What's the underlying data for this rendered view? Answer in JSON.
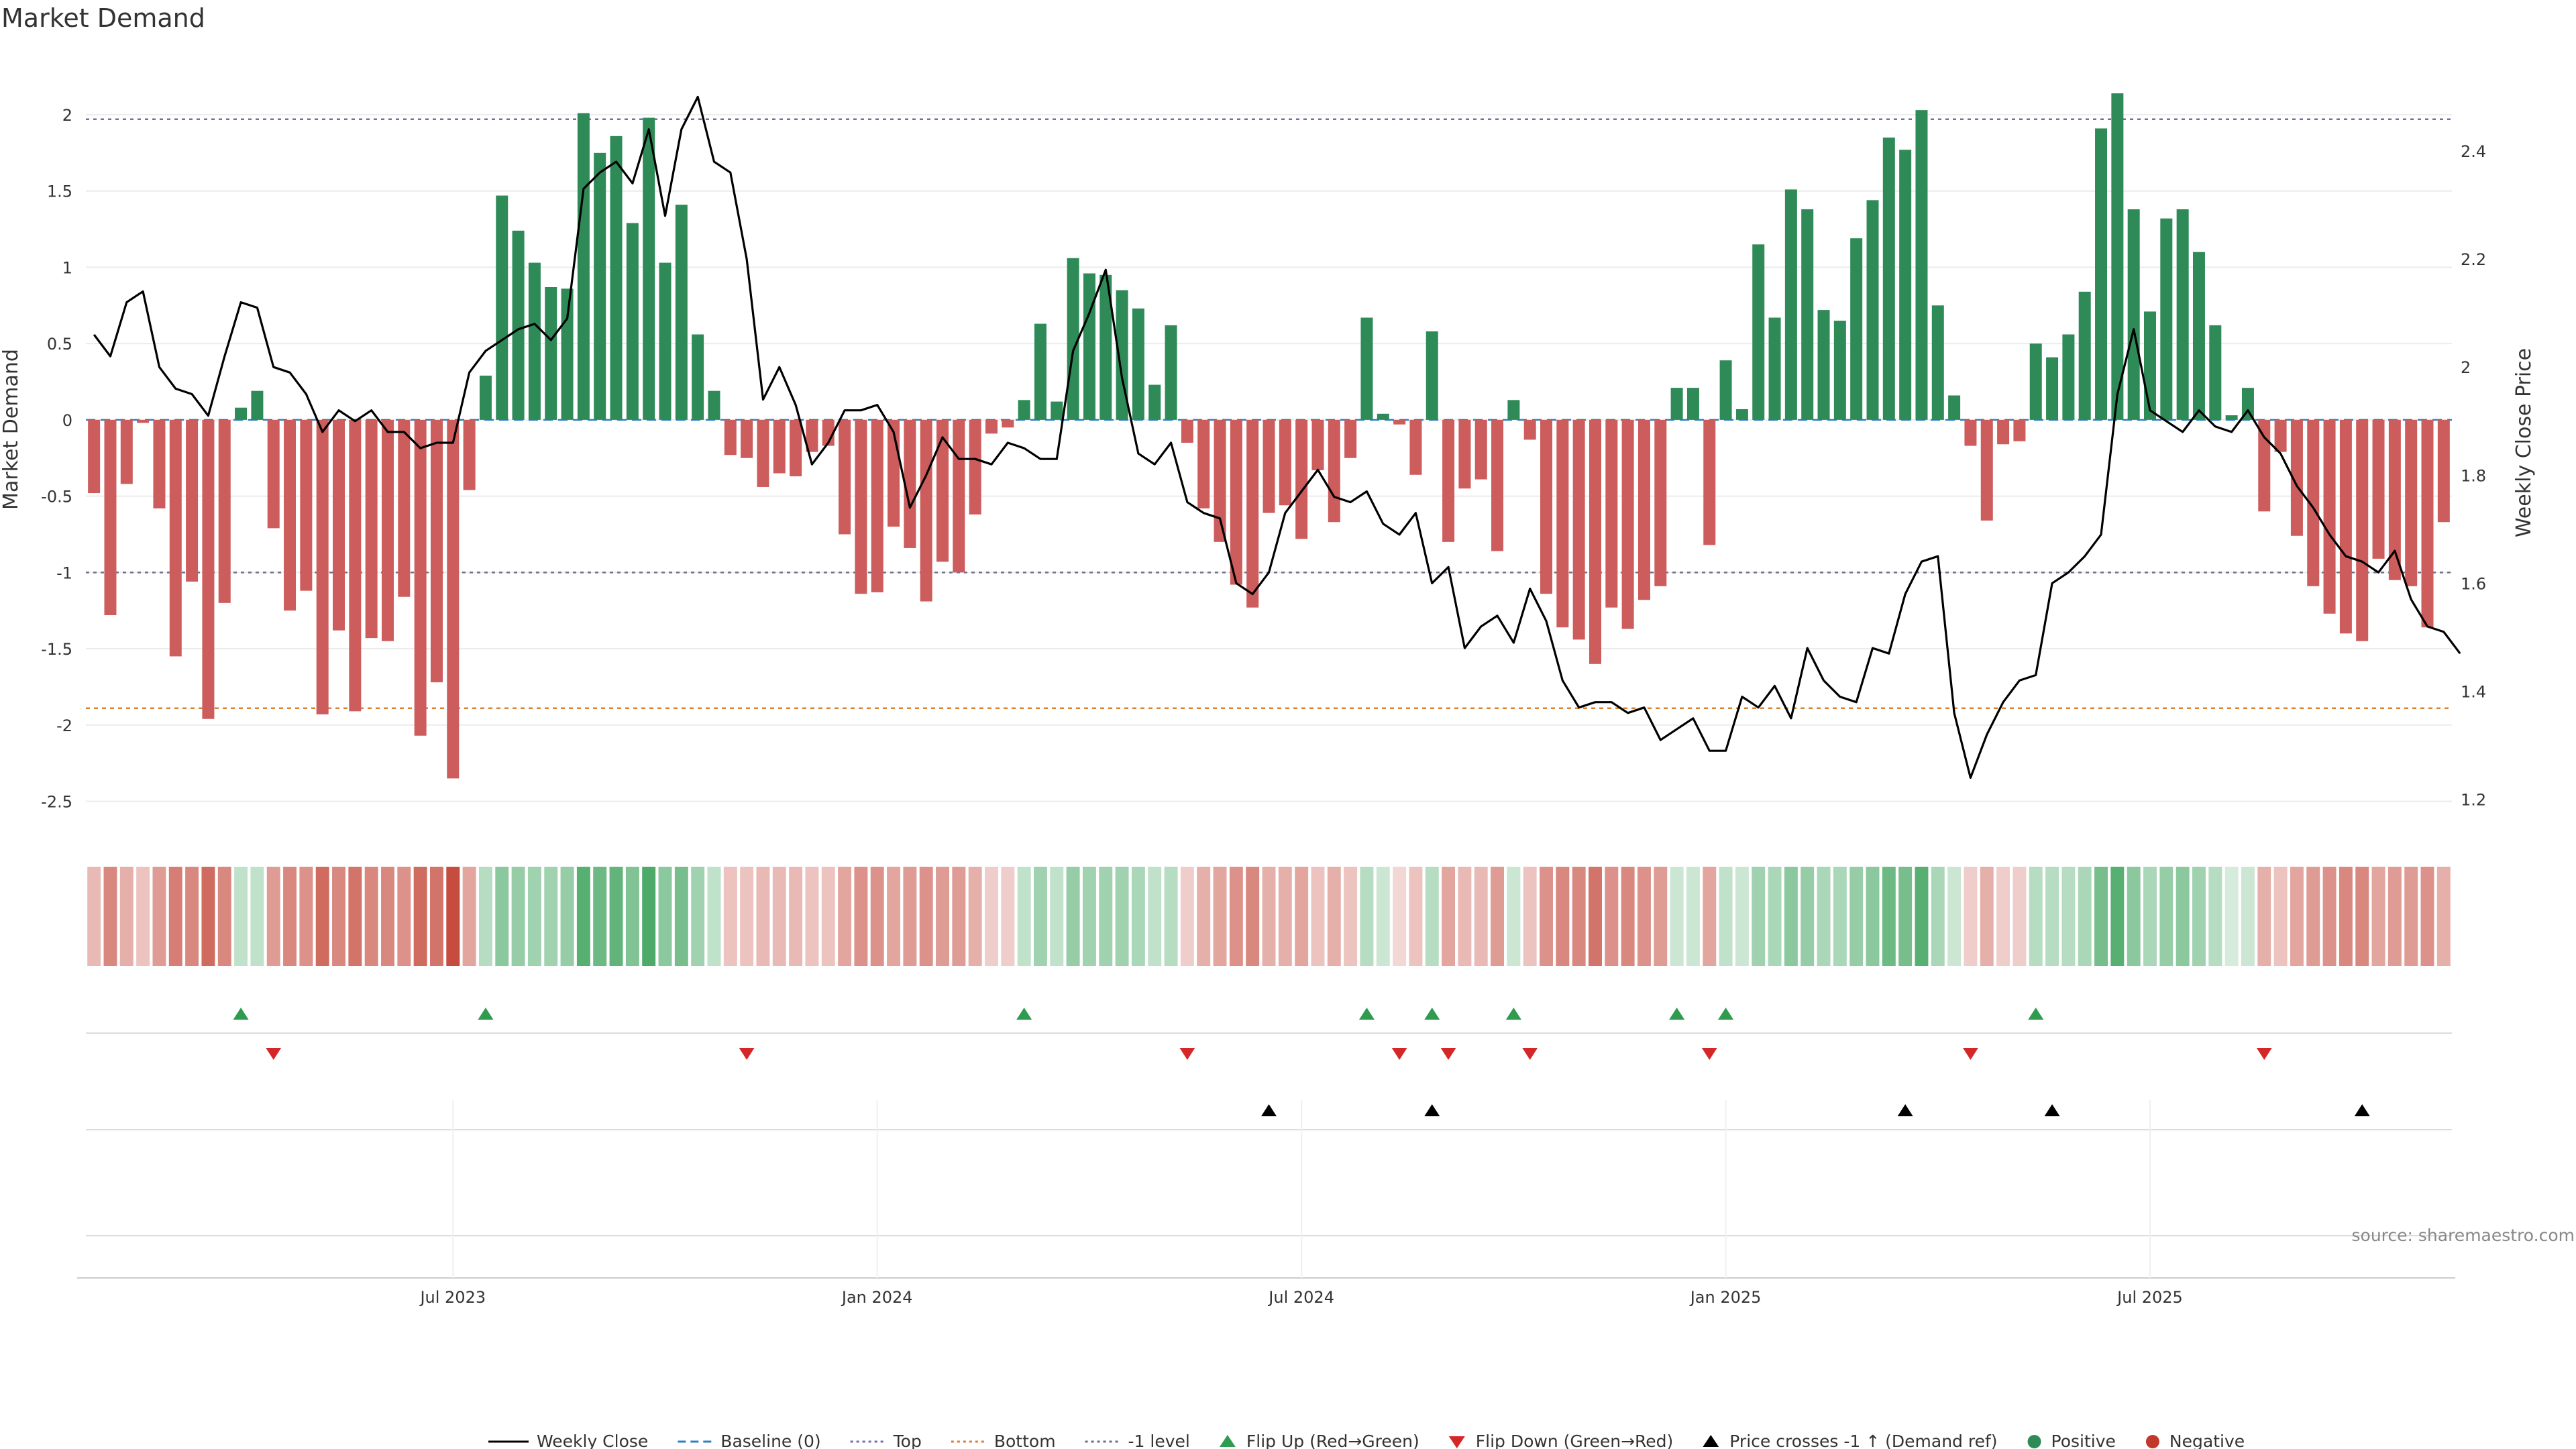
{
  "chart_data": {
    "type": "bar",
    "title": "Market Demand",
    "ylabel": "Market Demand",
    "y2label": "Weekly Close Price",
    "ylim": [
      -2.7,
      2.4
    ],
    "y2lim": [
      1.14,
      2.58
    ],
    "yticks": [
      "2",
      "1.5",
      "1",
      "0.5",
      "0",
      "-0.5",
      "-1",
      "-1.5",
      "-2",
      "-2.5"
    ],
    "y2ticks": [
      "2.4",
      "2.2",
      "2",
      "1.8",
      "1.6",
      "1.4",
      "1.2"
    ],
    "xticks": [
      "Jul 2023",
      "Jan 2024",
      "Jul 2024",
      "Jan 2025",
      "Jul 2025"
    ],
    "xtick_index": [
      22,
      48,
      74,
      100,
      126
    ],
    "reference_lines": {
      "top": 1.97,
      "bottom": -1.89,
      "minus_one": -1.0,
      "baseline": 0
    },
    "demand": [
      -0.48,
      -1.28,
      -0.42,
      -0.02,
      -0.58,
      -1.55,
      -1.06,
      -1.96,
      -1.2,
      0.08,
      0.19,
      -0.71,
      -1.25,
      -1.12,
      -1.93,
      -1.38,
      -1.91,
      -1.43,
      -1.45,
      -1.16,
      -2.07,
      -1.72,
      -2.35,
      -0.46,
      0.29,
      1.47,
      1.24,
      1.03,
      0.87,
      0.86,
      2.01,
      1.75,
      1.86,
      1.29,
      1.98,
      1.03,
      1.41,
      0.56,
      0.19,
      -0.23,
      -0.25,
      -0.44,
      -0.35,
      -0.37,
      -0.21,
      -0.17,
      -0.75,
      -1.14,
      -1.13,
      -0.7,
      -0.84,
      -1.19,
      -0.93,
      -1.0,
      -0.62,
      -0.09,
      -0.05,
      0.13,
      0.63,
      0.12,
      1.06,
      0.96,
      0.95,
      0.85,
      0.73,
      0.23,
      0.62,
      -0.15,
      -0.58,
      -0.8,
      -1.08,
      -1.23,
      -0.61,
      -0.56,
      -0.78,
      -0.33,
      -0.67,
      -0.25,
      0.67,
      0.04,
      -0.03,
      -0.36,
      0.58,
      -0.8,
      -0.45,
      -0.39,
      -0.86,
      0.13,
      -0.13,
      -1.14,
      -1.36,
      -1.44,
      -1.6,
      -1.23,
      -1.37,
      -1.18,
      -1.09,
      0.21,
      0.21,
      -0.82,
      0.39,
      0.07,
      1.15,
      0.67,
      1.51,
      1.38,
      0.72,
      0.65,
      1.19,
      1.44,
      1.85,
      1.77,
      2.03,
      0.75,
      0.16,
      -0.17,
      -0.66,
      -0.16,
      -0.14,
      0.5,
      0.41,
      0.56,
      0.84,
      1.91,
      2.14,
      1.38,
      0.71,
      1.32,
      1.38,
      1.1,
      0.62,
      0.03,
      0.21,
      -0.6,
      -0.21,
      -0.76,
      -1.09,
      -1.27,
      -1.4,
      -1.45,
      -0.91,
      -1.05,
      -1.09,
      -1.36,
      -0.67
    ],
    "close": [
      2.06,
      2.02,
      2.12,
      2.14,
      2.0,
      1.96,
      1.95,
      1.91,
      2.02,
      2.12,
      2.11,
      2.0,
      1.99,
      1.95,
      1.88,
      1.92,
      1.9,
      1.92,
      1.88,
      1.88,
      1.85,
      1.86,
      1.86,
      1.99,
      2.03,
      2.05,
      2.07,
      2.08,
      2.05,
      2.09,
      2.33,
      2.36,
      2.38,
      2.34,
      2.44,
      2.28,
      2.44,
      2.5,
      2.38,
      2.36,
      2.2,
      1.94,
      2.0,
      1.93,
      1.82,
      1.86,
      1.92,
      1.92,
      1.93,
      1.88,
      1.74,
      1.8,
      1.87,
      1.83,
      1.83,
      1.82,
      1.86,
      1.85,
      1.83,
      1.83,
      2.03,
      2.1,
      2.18,
      1.98,
      1.84,
      1.82,
      1.86,
      1.75,
      1.73,
      1.72,
      1.6,
      1.58,
      1.62,
      1.73,
      1.77,
      1.81,
      1.76,
      1.75,
      1.77,
      1.71,
      1.69,
      1.73,
      1.6,
      1.63,
      1.48,
      1.52,
      1.54,
      1.49,
      1.59,
      1.53,
      1.42,
      1.37,
      1.38,
      1.38,
      1.36,
      1.37,
      1.31,
      1.33,
      1.35,
      1.29,
      1.29,
      1.39,
      1.37,
      1.41,
      1.35,
      1.48,
      1.42,
      1.39,
      1.38,
      1.48,
      1.47,
      1.58,
      1.64,
      1.65,
      1.36,
      1.24,
      1.32,
      1.38,
      1.42,
      1.43,
      1.6,
      1.62,
      1.65,
      1.69,
      1.95,
      2.07,
      1.92,
      1.9,
      1.88,
      1.92,
      1.89,
      1.88,
      1.92,
      1.87,
      1.84,
      1.78,
      1.74,
      1.69,
      1.65,
      1.64,
      1.62,
      1.66,
      1.57,
      1.52,
      1.51,
      1.47
    ],
    "strip_alpha": [
      0.35,
      0.6,
      0.4,
      0.3,
      0.5,
      0.65,
      0.6,
      0.75,
      0.6,
      0.3,
      0.3,
      0.5,
      0.6,
      0.55,
      0.75,
      0.6,
      0.7,
      0.6,
      0.6,
      0.55,
      0.75,
      0.7,
      0.9,
      0.45,
      0.35,
      0.55,
      0.5,
      0.45,
      0.45,
      0.5,
      0.8,
      0.7,
      0.75,
      0.6,
      0.85,
      0.55,
      0.65,
      0.45,
      0.3,
      0.3,
      0.3,
      0.35,
      0.35,
      0.35,
      0.3,
      0.3,
      0.45,
      0.55,
      0.55,
      0.45,
      0.5,
      0.55,
      0.5,
      0.5,
      0.4,
      0.25,
      0.25,
      0.3,
      0.45,
      0.3,
      0.5,
      0.45,
      0.45,
      0.45,
      0.4,
      0.3,
      0.35,
      0.25,
      0.4,
      0.45,
      0.55,
      0.6,
      0.4,
      0.4,
      0.45,
      0.3,
      0.4,
      0.3,
      0.35,
      0.25,
      0.2,
      0.3,
      0.35,
      0.45,
      0.35,
      0.35,
      0.5,
      0.25,
      0.3,
      0.55,
      0.6,
      0.6,
      0.7,
      0.55,
      0.6,
      0.55,
      0.5,
      0.25,
      0.25,
      0.45,
      0.3,
      0.25,
      0.45,
      0.4,
      0.55,
      0.5,
      0.4,
      0.4,
      0.5,
      0.55,
      0.7,
      0.65,
      0.8,
      0.4,
      0.25,
      0.25,
      0.4,
      0.25,
      0.25,
      0.35,
      0.35,
      0.35,
      0.4,
      0.65,
      0.8,
      0.55,
      0.4,
      0.5,
      0.55,
      0.45,
      0.35,
      0.2,
      0.25,
      0.4,
      0.3,
      0.45,
      0.5,
      0.55,
      0.6,
      0.6,
      0.45,
      0.5,
      0.5,
      0.55,
      0.4
    ],
    "flip_up": [
      9,
      24,
      57,
      78,
      82,
      87,
      97,
      100,
      119
    ],
    "flip_down": [
      11,
      40,
      67,
      80,
      83,
      88,
      99,
      115,
      133
    ],
    "price_cross": [
      72,
      82,
      111,
      120,
      139
    ]
  },
  "legend": [
    {
      "key": "weekly_close",
      "label": "Weekly Close",
      "symbol": "line",
      "color": "#000000"
    },
    {
      "key": "baseline",
      "label": "Baseline (0)",
      "symbol": "dash",
      "color": "#2e7fc2"
    },
    {
      "key": "top",
      "label": "Top",
      "symbol": "dot",
      "color": "#6e6eb3"
    },
    {
      "key": "bottom",
      "label": "Bottom",
      "symbol": "dot",
      "color": "#d9822b"
    },
    {
      "key": "minus_one",
      "label": "-1 level",
      "symbol": "dot",
      "color": "#6e6e88"
    },
    {
      "key": "flip_up",
      "label": "Flip Up (Red→Green)",
      "symbol": "tri-up",
      "color": "#2e9b4f"
    },
    {
      "key": "flip_down",
      "label": "Flip Down (Green→Red)",
      "symbol": "tri-down",
      "color": "#d62728"
    },
    {
      "key": "price_cross",
      "label": "Price crosses -1 ↑ (Demand ref)",
      "symbol": "tri-up",
      "color": "#000000"
    },
    {
      "key": "positive",
      "label": "Positive",
      "symbol": "circle",
      "color": "#2e8b57"
    },
    {
      "key": "negative",
      "label": "Negative",
      "symbol": "circle",
      "color": "#c0392b"
    }
  ],
  "colors": {
    "positive_bar": "#2e8b57",
    "negative_bar": "#cd5c5c",
    "strip_positive": "#2e9b4f",
    "strip_negative": "#c0392b"
  },
  "source": "source: sharemaestro.com"
}
